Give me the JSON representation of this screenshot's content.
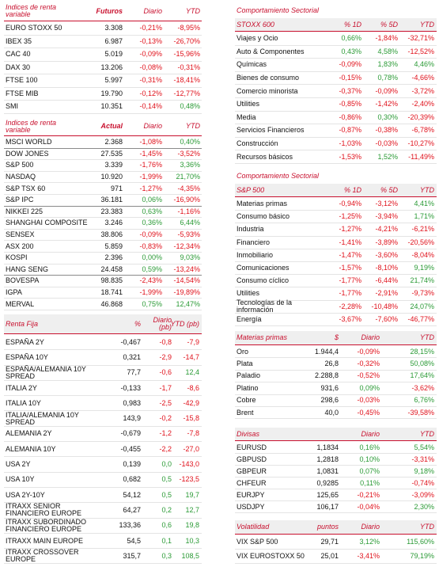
{
  "tables": [
    {
      "headers": [
        "Indices de renta variable",
        "Futuros",
        "Diario",
        "YTD"
      ],
      "groups": [
        [
          [
            "EURO STOXX 50",
            "3.308",
            "-0,21%",
            "-8,95%"
          ],
          [
            "IBEX 35",
            "6.987",
            "-0,13%",
            "-26,70%"
          ],
          [
            "CAC 40",
            "5.019",
            "-0,09%",
            "-15,96%"
          ],
          [
            "DAX 30",
            "13.206",
            "-0,08%",
            "-0,31%"
          ],
          [
            "FTSE 100",
            "5.997",
            "-0,31%",
            "-18,41%"
          ],
          [
            "FTSE MIB",
            "19.790",
            "-0,12%",
            "-12,77%"
          ],
          [
            "SMI",
            "10.351",
            "-0,14%",
            "0,48%"
          ]
        ]
      ]
    },
    {
      "headers": [
        "Indices de renta variable",
        "Actual",
        "Diario",
        "YTD"
      ],
      "groups": [
        [
          [
            "MSCI WORLD",
            "2.368",
            "-1,08%",
            "0,40%"
          ]
        ],
        [
          [
            "DOW JONES",
            "27.535",
            "-1,45%",
            "-3,52%"
          ],
          [
            "S&P 500",
            "3.339",
            "-1,76%",
            "3,36%"
          ],
          [
            "NASDAQ",
            "10.920",
            "-1,99%",
            "21,70%"
          ],
          [
            "S&P TSX 60",
            "971",
            "-1,27%",
            "-4,35%"
          ],
          [
            "S&P IPC",
            "36.181",
            "0,06%",
            "-16,90%"
          ]
        ],
        [
          [
            "NIKKEI 225",
            "23.383",
            "0,63%",
            "-1,16%"
          ],
          [
            "SHANGHAI COMPOSITE",
            "3.246",
            "0,36%",
            "6,44%"
          ],
          [
            "SENSEX",
            "38.806",
            "-0,09%",
            "-5,93%"
          ],
          [
            "ASX 200",
            "5.859",
            "-0,83%",
            "-12,34%"
          ],
          [
            "KOSPI",
            "2.396",
            "0,00%",
            "9,03%"
          ],
          [
            "HANG SENG",
            "24.458",
            "0,59%",
            "-13,24%"
          ]
        ],
        [
          [
            "BOVESPA",
            "98.835",
            "-2,43%",
            "-14,54%"
          ],
          [
            "IGPA",
            "18.741",
            "-1,99%",
            "-19,89%"
          ],
          [
            "MERVAL",
            "46.868",
            "0,75%",
            "12,47%"
          ]
        ]
      ]
    },
    {
      "headers": [
        "Renta Fija",
        "%",
        "Diario (pb)",
        "YTD (pb)"
      ],
      "groups": [
        [
          [
            "ESPAÑA 2Y",
            "-0,467",
            "-0,8",
            "-7,9"
          ],
          [
            "ESPAÑA 10Y",
            "0,321",
            "-2,9",
            "-14,7"
          ],
          [
            "ESPAÑA/ALEMANIA 10Y SPREAD",
            "77,7",
            "-0,6",
            "12,4"
          ],
          [
            "ITALIA 2Y",
            "-0,133",
            "-1,7",
            "-8,6"
          ],
          [
            "ITALIA 10Y",
            "0,983",
            "-2,5",
            "-42,9"
          ],
          [
            "ITALIA/ALEMANIA 10Y SPREAD",
            "143,9",
            "-0,2",
            "-15,8"
          ],
          [
            "ALEMANIA 2Y",
            "-0,679",
            "-1,2",
            "-7,8"
          ],
          [
            "ALEMANIA 10Y",
            "-0,455",
            "-2,2",
            "-27,0"
          ],
          [
            "USA 2Y",
            "0,139",
            "0,0",
            "-143,0"
          ],
          [
            "USA 10Y",
            "0,682",
            "0,5",
            "-123,5"
          ],
          [
            "USA 2Y-10Y",
            "54,12",
            "0,5",
            "19,7"
          ],
          [
            "ITRAXX SENIOR FINANCIERO EUROPE",
            "64,27",
            "0,2",
            "12,7"
          ],
          [
            "ITRAXX SUBORDINADO FINANCIERO EUROPE",
            "133,36",
            "0,6",
            "19,8"
          ],
          [
            "ITRAXX MAIN EUROPE",
            "54,5",
            "0,1",
            "10,3"
          ],
          [
            "ITRAXX CROSSOVER EUROPE",
            "315,7",
            "0,3",
            "108,5"
          ]
        ]
      ]
    },
    {
      "title": "Comportamiento Sectorial",
      "headers": [
        "STOXX 600",
        "% 1D",
        "% 5D",
        "YTD"
      ],
      "groups": [
        [
          [
            "Viajes y Ocio",
            "0,66%",
            "-1,84%",
            "-32,71%"
          ],
          [
            "Auto & Componentes",
            "0,43%",
            "4,58%",
            "-12,52%"
          ],
          [
            "Químicas",
            "-0,09%",
            "1,83%",
            "4,46%"
          ],
          [
            "Bienes de consumo",
            "-0,15%",
            "0,78%",
            "-4,66%"
          ],
          [
            "Comercio minorista",
            "-0,37%",
            "-0,09%",
            "-3,72%"
          ],
          [
            "Utilities",
            "-0,85%",
            "-1,42%",
            "-2,40%"
          ],
          [
            "Media",
            "-0,86%",
            "0,30%",
            "-20,39%"
          ],
          [
            "Servicios Financieros",
            "-0,87%",
            "-0,38%",
            "-6,78%"
          ],
          [
            "Construcción",
            "-1,03%",
            "-0,03%",
            "-10,27%"
          ],
          [
            "Recursos básicos",
            "-1,53%",
            "1,52%",
            "-11,49%"
          ]
        ]
      ]
    },
    {
      "title": "Comportamiento Sectorial",
      "headers": [
        "S&P 500",
        "% 1D",
        "% 5D",
        "YTD"
      ],
      "groups": [
        [
          [
            "Materias primas",
            "-0,94%",
            "-3,12%",
            "4,41%"
          ],
          [
            "Consumo básico",
            "-1,25%",
            "-3,94%",
            "1,71%"
          ],
          [
            "Industria",
            "-1,27%",
            "-4,21%",
            "-6,21%"
          ],
          [
            "Financiero",
            "-1,41%",
            "-3,89%",
            "-20,56%"
          ],
          [
            "Inmobiliario",
            "-1,47%",
            "-3,60%",
            "-8,04%"
          ],
          [
            "Comunicaciones",
            "-1,57%",
            "-8,10%",
            "9,19%"
          ],
          [
            "Consumo cíclico",
            "-1,77%",
            "-6,44%",
            "21,74%"
          ],
          [
            "Utilities",
            "-1,77%",
            "-2,91%",
            "-9,73%"
          ],
          [
            "Tecnologías de la información",
            "-2,28%",
            "-10,48%",
            "24,07%"
          ],
          [
            "Energía",
            "-3,67%",
            "-7,60%",
            "-46,77%"
          ]
        ]
      ]
    },
    {
      "headers": [
        "Materias primas",
        "$",
        "Diario",
        "YTD"
      ],
      "groups": [
        [
          [
            "Oro",
            "1.944,4",
            "-0,09%",
            "28,15%"
          ],
          [
            "Plata",
            "26,8",
            "-0,32%",
            "50,08%"
          ],
          [
            "Paladio",
            "2.288,8",
            "-0,52%",
            "17,64%"
          ],
          [
            "Platino",
            "931,6",
            "0,09%",
            "-3,62%"
          ],
          [
            "Cobre",
            "298,6",
            "-0,03%",
            "6,76%"
          ],
          [
            "Brent",
            "40,0",
            "-0,45%",
            "-39,58%"
          ]
        ]
      ]
    },
    {
      "headers": [
        "Divisas",
        null,
        "Diario",
        "YTD"
      ],
      "groups": [
        [
          [
            "EURUSD",
            "1,1834",
            "0,16%",
            "5,54%"
          ],
          [
            "GBPUSD",
            "1,2818",
            "0,10%",
            "-3,31%"
          ],
          [
            "GBPEUR",
            "1,0831",
            "0,07%",
            "9,18%"
          ],
          [
            "CHFEUR",
            "0,9285",
            "0,11%",
            "-0,74%"
          ],
          [
            "EURJPY",
            "125,65",
            "-0,21%",
            "-3,09%"
          ],
          [
            "USDJPY",
            "106,17",
            "-0,04%",
            "2,30%"
          ]
        ]
      ]
    },
    {
      "headers": [
        "Volatilidad",
        "puntos",
        "Diario",
        "YTD"
      ],
      "groups": [
        [
          [
            "VIX S&P 500",
            "29,71",
            "3,12%",
            "115,60%"
          ],
          [
            "VIX EUROSTOXX 50",
            "25,01",
            "-3,41%",
            "79,19%"
          ]
        ]
      ]
    }
  ]
}
